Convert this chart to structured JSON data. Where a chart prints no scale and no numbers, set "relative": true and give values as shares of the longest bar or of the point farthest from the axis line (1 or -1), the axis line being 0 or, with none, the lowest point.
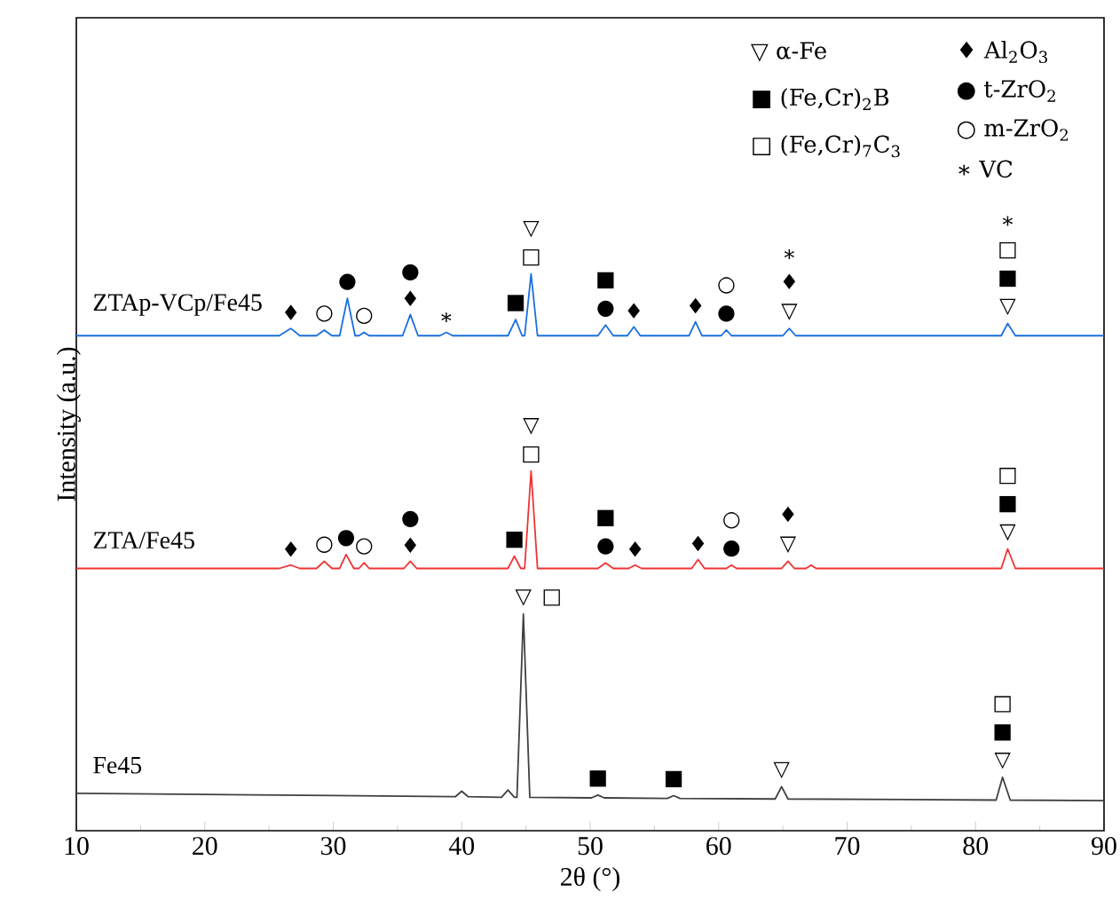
{
  "chart_data": {
    "type": "line",
    "relative": true,
    "xlabel": "2θ (°)",
    "ylabel": "Intensity (a.u.)",
    "xlim": [
      10,
      90
    ],
    "xticks": [
      10,
      20,
      30,
      40,
      50,
      60,
      70,
      80,
      90
    ],
    "tick_labels": "x",
    "series": [
      {
        "name": "ZTAp-VCp/Fe45",
        "color": "#1a6fdf",
        "x": [
          10,
          20,
          25.8,
          26.7,
          27.4,
          28.7,
          29.3,
          29.9,
          30.5,
          31.1,
          31.7,
          32.0,
          32.4,
          32.8,
          35.4,
          36.0,
          36.6,
          38.3,
          38.8,
          39.3,
          43.6,
          44.2,
          44.7,
          44.9,
          45.4,
          45.9,
          50.6,
          51.2,
          51.8,
          52.9,
          53.4,
          53.9,
          57.7,
          58.2,
          58.7,
          60.2,
          60.6,
          61.0,
          65.0,
          65.5,
          66.0,
          82.0,
          82.5,
          83.1,
          90
        ],
        "values": [
          0.889,
          0.889,
          0.889,
          0.902,
          0.889,
          0.889,
          0.899,
          0.889,
          0.889,
          0.956,
          0.889,
          0.889,
          0.895,
          0.889,
          0.889,
          0.927,
          0.889,
          0.889,
          0.895,
          0.889,
          0.889,
          0.918,
          0.889,
          0.889,
          1.0,
          0.889,
          0.889,
          0.908,
          0.889,
          0.889,
          0.905,
          0.889,
          0.889,
          0.914,
          0.889,
          0.889,
          0.899,
          0.889,
          0.889,
          0.902,
          0.889,
          0.889,
          0.911,
          0.889,
          0.889
        ]
      },
      {
        "name": "ZTA/Fe45",
        "color": "#ee3333",
        "x": [
          10,
          25.8,
          26.7,
          27.4,
          28.7,
          29.3,
          29.9,
          30.5,
          31.0,
          31.6,
          32.0,
          32.4,
          32.8,
          35.5,
          36.0,
          36.5,
          43.6,
          44.1,
          44.6,
          44.9,
          45.4,
          45.9,
          50.6,
          51.2,
          51.8,
          53.0,
          53.5,
          54.0,
          57.9,
          58.4,
          58.9,
          60.6,
          61.0,
          61.4,
          64.9,
          65.4,
          65.9,
          66.8,
          67.2,
          67.6,
          82.0,
          82.5,
          83.1,
          90
        ],
        "values": [
          0.471,
          0.471,
          0.477,
          0.471,
          0.471,
          0.484,
          0.471,
          0.471,
          0.496,
          0.471,
          0.471,
          0.481,
          0.471,
          0.471,
          0.484,
          0.471,
          0.471,
          0.493,
          0.471,
          0.471,
          0.646,
          0.471,
          0.471,
          0.481,
          0.471,
          0.471,
          0.477,
          0.471,
          0.471,
          0.487,
          0.471,
          0.471,
          0.477,
          0.471,
          0.471,
          0.484,
          0.471,
          0.471,
          0.477,
          0.471,
          0.471,
          0.506,
          0.471,
          0.471
        ]
      },
      {
        "name": "Fe45",
        "color": "#404040",
        "x": [
          10,
          20,
          30,
          39.5,
          40.0,
          40.5,
          43.1,
          43.6,
          44.1,
          44.3,
          44.8,
          45.3,
          50.1,
          50.6,
          51.1,
          56.0,
          56.5,
          57.0,
          64.4,
          64.9,
          65.4,
          81.6,
          82.1,
          82.7,
          90
        ],
        "values": [
          0.067,
          0.065,
          0.063,
          0.061,
          0.071,
          0.061,
          0.06,
          0.073,
          0.06,
          0.06,
          0.389,
          0.06,
          0.059,
          0.064,
          0.059,
          0.058,
          0.063,
          0.058,
          0.057,
          0.079,
          0.057,
          0.055,
          0.096,
          0.055,
          0.054
        ]
      }
    ],
    "annotations": [
      "▽ α-Fe",
      "■ (Fe,Cr)$_{2}$B",
      "□ (Fe,Cr)$_{7}$C$_{3}$",
      "♦ Al$_{2}$O$_{3}$",
      "● t-ZrO$_{2}$",
      "○ m-ZrO$_{2}$",
      "∗ VC",
      {
        "text": "♦",
        "x": 26.7,
        "y": 0.902
      },
      {
        "text": "○",
        "x": 29.3,
        "y": 0.899
      },
      {
        "text": "●",
        "x": 31.1,
        "y": 0.956
      },
      {
        "text": "○",
        "x": 32.4,
        "y": 0.895
      },
      {
        "text": "● ♦",
        "x": 36.0,
        "y": 0.927
      },
      {
        "text": "∗",
        "x": 38.8,
        "y": 0.895
      },
      {
        "text": "■",
        "x": 44.2,
        "y": 0.918
      },
      {
        "text": "▽ □",
        "x": 45.4,
        "y": 1.0
      },
      {
        "text": "■ ●",
        "x": 51.2,
        "y": 0.908
      },
      {
        "text": "♦",
        "x": 53.4,
        "y": 0.905
      },
      {
        "text": "♦",
        "x": 58.2,
        "y": 0.914
      },
      {
        "text": "○ ●",
        "x": 60.6,
        "y": 0.899
      },
      {
        "text": "∗ ♦ ▽",
        "x": 65.5,
        "y": 0.902
      },
      {
        "text": "∗ □ ■ ▽",
        "x": 82.5,
        "y": 0.911
      },
      {
        "text": "♦",
        "x": 26.7,
        "y": 0.477
      },
      {
        "text": "○",
        "x": 29.3,
        "y": 0.484
      },
      {
        "text": "●",
        "x": 31.0,
        "y": 0.496
      },
      {
        "text": "○",
        "x": 32.4,
        "y": 0.481
      },
      {
        "text": "● ♦",
        "x": 36.0,
        "y": 0.484
      },
      {
        "text": "■",
        "x": 44.1,
        "y": 0.493
      },
      {
        "text": "▽ □",
        "x": 45.4,
        "y": 0.646
      },
      {
        "text": "■ ●",
        "x": 51.2,
        "y": 0.481
      },
      {
        "text": "♦",
        "x": 53.5,
        "y": 0.477
      },
      {
        "text": "♦",
        "x": 58.4,
        "y": 0.487
      },
      {
        "text": "○ ●",
        "x": 61.0,
        "y": 0.477
      },
      {
        "text": "♦ ▽",
        "x": 65.4,
        "y": 0.484
      },
      {
        "text": "□ ■ ▽",
        "x": 82.5,
        "y": 0.506
      },
      {
        "text": "▽",
        "x": 44.8,
        "y": 0.389
      },
      {
        "text": "□",
        "x": 44.8,
        "y": 0.389
      },
      {
        "text": "■",
        "x": 50.6,
        "y": 0.064
      },
      {
        "text": "■",
        "x": 56.5,
        "y": 0.063
      },
      {
        "text": "▽",
        "x": 64.9,
        "y": 0.079
      },
      {
        "text": "□ ■ ▽",
        "x": 82.1,
        "y": 0.096
      }
    ]
  }
}
